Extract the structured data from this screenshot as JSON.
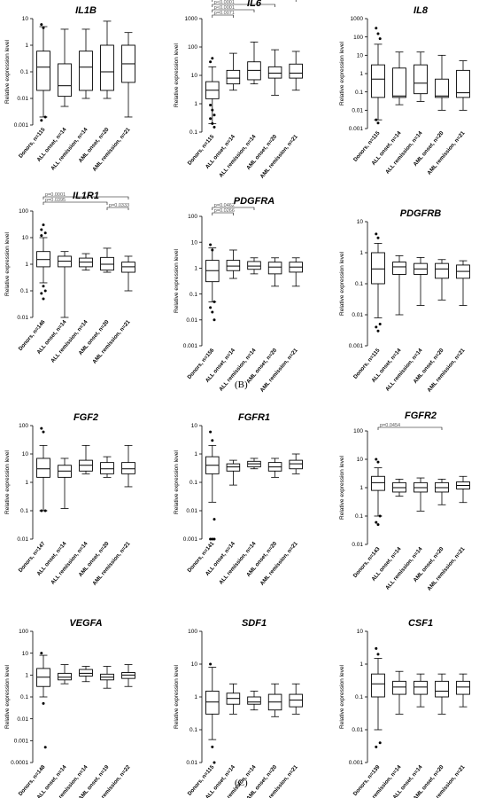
{
  "section_labels": [
    "(B)",
    "(C)"
  ],
  "chart_data": [
    {
      "type": "box",
      "title": "IL1B",
      "ylabel": "Relative expression level",
      "yscale": "log",
      "ylim": [
        0.001,
        10
      ],
      "yticks": [
        "0.001",
        "0.01",
        "0.1",
        "1",
        "10"
      ],
      "categories": [
        "Donors, n=115",
        "ALL onset, n=14",
        "ALL remission, n=14",
        "AML onset, n=20",
        "AML remission, n=21"
      ],
      "boxes": [
        {
          "min": 0.002,
          "q1": 0.02,
          "median": 0.15,
          "q3": 0.6,
          "max": 5,
          "outliers": [
            6,
            4.5,
            0.002,
            0.0015
          ]
        },
        {
          "min": 0.005,
          "q1": 0.012,
          "median": 0.03,
          "q3": 0.2,
          "max": 4
        },
        {
          "min": 0.01,
          "q1": 0.02,
          "median": 0.15,
          "q3": 0.6,
          "max": 4
        },
        {
          "min": 0.01,
          "q1": 0.02,
          "median": 0.1,
          "q3": 1,
          "max": 8
        },
        {
          "min": 0.002,
          "q1": 0.04,
          "median": 0.2,
          "q3": 1,
          "max": 3
        }
      ],
      "comparisons": []
    },
    {
      "type": "box",
      "title": "IL6",
      "ylabel": "Relative expression level",
      "yscale": "log",
      "ylim": [
        0.1,
        1000
      ],
      "yticks": [
        "0.1",
        "1",
        "10",
        "100",
        "1000"
      ],
      "categories": [
        "Donors, n=115",
        "ALL onset, n=14",
        "ALL remission, n=14",
        "AML onset, n=20",
        "AML remission, n=21"
      ],
      "boxes": [
        {
          "min": 0.2,
          "q1": 1.5,
          "median": 3,
          "q3": 6,
          "max": 20,
          "outliers": [
            0.9,
            0.6,
            0.4,
            0.3,
            0.2,
            0.15,
            30,
            40
          ]
        },
        {
          "min": 3,
          "q1": 5,
          "median": 8,
          "q3": 15,
          "max": 60
        },
        {
          "min": 5,
          "q1": 7,
          "median": 15,
          "q3": 30,
          "max": 150
        },
        {
          "min": 2,
          "q1": 8,
          "median": 12,
          "q3": 20,
          "max": 80
        },
        {
          "min": 3,
          "q1": 8,
          "median": 12,
          "q3": 25,
          "max": 70
        }
      ],
      "comparisons": [
        {
          "from": 0,
          "to": 4,
          "label": "p<0.0001"
        },
        {
          "from": 0,
          "to": 3,
          "label": "p<0.0001"
        },
        {
          "from": 0,
          "to": 2,
          "label": "p<0.0001"
        },
        {
          "from": 0,
          "to": 1,
          "label": "p=0.0071"
        }
      ]
    },
    {
      "type": "box",
      "title": "IL8",
      "ylabel": "Relative expression level",
      "yscale": "log",
      "ylim": [
        0.001,
        1000
      ],
      "yticks": [
        "0.001",
        "0.01",
        "0.1",
        "1",
        "10",
        "100",
        "1000"
      ],
      "categories": [
        "Donors, n=115",
        "ALL onset, n=14",
        "ALL remission, n=14",
        "AML onset, n=20",
        "AML remission, n=21"
      ],
      "boxes": [
        {
          "min": 0.003,
          "q1": 0.05,
          "median": 0.5,
          "q3": 3,
          "max": 40,
          "outliers": [
            300,
            150,
            80,
            0.003,
            0.002
          ]
        },
        {
          "min": 0.02,
          "q1": 0.05,
          "median": 0.06,
          "q3": 2,
          "max": 15
        },
        {
          "min": 0.03,
          "q1": 0.08,
          "median": 0.3,
          "q3": 3,
          "max": 15
        },
        {
          "min": 0.01,
          "q1": 0.05,
          "median": 0.06,
          "q3": 0.5,
          "max": 10
        },
        {
          "min": 0.01,
          "q1": 0.05,
          "median": 0.09,
          "q3": 1.5,
          "max": 5
        }
      ],
      "comparisons": []
    },
    {
      "type": "box",
      "title": "IL1R1",
      "ylabel": "Relative expression level",
      "yscale": "log",
      "ylim": [
        0.01,
        100
      ],
      "yticks": [
        "0.01",
        "0.1",
        "1",
        "10",
        "100"
      ],
      "categories": [
        "Donors, n=146",
        "ALL onset, n=14",
        "ALL remission, n=14",
        "AML onset, n=20",
        "AML remission, n=21"
      ],
      "boxes": [
        {
          "min": 0.2,
          "q1": 0.8,
          "median": 1.5,
          "q3": 3,
          "max": 10,
          "outliers": [
            20,
            30,
            15,
            12,
            0.15,
            0.1,
            0.08,
            0.05
          ]
        },
        {
          "min": 0.01,
          "q1": 0.8,
          "median": 1.3,
          "q3": 2,
          "max": 3
        },
        {
          "min": 0.6,
          "q1": 0.8,
          "median": 1.2,
          "q3": 1.7,
          "max": 2.5
        },
        {
          "min": 0.5,
          "q1": 0.6,
          "median": 1,
          "q3": 1.8,
          "max": 4
        },
        {
          "min": 0.1,
          "q1": 0.5,
          "median": 0.8,
          "q3": 1.2,
          "max": 2
        }
      ],
      "comparisons": [
        {
          "from": 0,
          "to": 4,
          "label": "p=0.0001"
        },
        {
          "from": 0,
          "to": 3,
          "label": "p=0.0395"
        },
        {
          "from": 3,
          "to": 4,
          "label": "p=0.0333"
        }
      ]
    },
    {
      "type": "box",
      "title": "PDGFRA",
      "ylabel": "Relative expression level",
      "yscale": "log",
      "ylim": [
        0.001,
        100
      ],
      "yticks": [
        "0.001",
        "0.01",
        "0.1",
        "1",
        "10",
        "100"
      ],
      "categories": [
        "Donors, n=156",
        "ALL onset, n=14",
        "ALL remission, n=14",
        "AML onset, n=20",
        "AML remission, n=21"
      ],
      "boxes": [
        {
          "min": 0.05,
          "q1": 0.3,
          "median": 0.8,
          "q3": 2,
          "max": 6,
          "outliers": [
            8,
            5,
            0.05,
            0.03,
            0.02,
            0.01
          ]
        },
        {
          "min": 0.4,
          "q1": 0.8,
          "median": 1.2,
          "q3": 2,
          "max": 5
        },
        {
          "min": 0.6,
          "q1": 0.9,
          "median": 1.2,
          "q3": 1.8,
          "max": 2.5
        },
        {
          "min": 0.2,
          "q1": 0.6,
          "median": 1.1,
          "q3": 1.7,
          "max": 2.5
        },
        {
          "min": 0.2,
          "q1": 0.7,
          "median": 1.1,
          "q3": 1.7,
          "max": 2.5
        }
      ],
      "comparisons": [
        {
          "from": 0,
          "to": 2,
          "label": "p=0.0462"
        },
        {
          "from": 0,
          "to": 1,
          "label": "p=0.0266"
        }
      ]
    },
    {
      "type": "box",
      "title": "PDGFRB",
      "ylabel": "Relative expression level",
      "yscale": "log",
      "ylim": [
        0.001,
        10
      ],
      "yticks": [
        "0.001",
        "0.01",
        "0.1",
        "1",
        "10"
      ],
      "categories": [
        "Donors, n=115",
        "ALL onset, n=14",
        "ALL remission, n=14",
        "AML onset, n=20",
        "AML remission, n=21"
      ],
      "boxes": [
        {
          "min": 0.008,
          "q1": 0.1,
          "median": 0.3,
          "q3": 1,
          "max": 2,
          "outliers": [
            4,
            3,
            0.005,
            0.004,
            0.003
          ]
        },
        {
          "min": 0.01,
          "q1": 0.2,
          "median": 0.35,
          "q3": 0.5,
          "max": 0.8
        },
        {
          "min": 0.02,
          "q1": 0.2,
          "median": 0.3,
          "q3": 0.45,
          "max": 0.7
        },
        {
          "min": 0.03,
          "q1": 0.15,
          "median": 0.3,
          "q3": 0.45,
          "max": 0.6
        },
        {
          "min": 0.02,
          "q1": 0.15,
          "median": 0.25,
          "q3": 0.4,
          "max": 0.55
        }
      ],
      "comparisons": []
    },
    {
      "type": "box",
      "title": "FGF2",
      "ylabel": "Relative expression level",
      "yscale": "log",
      "ylim": [
        0.01,
        100
      ],
      "yticks": [
        "0.01",
        "0.1",
        "1",
        "10",
        "100"
      ],
      "categories": [
        "Donors, n=147",
        "ALL onset, n=14",
        "ALL remission, n=14",
        "AML onset, n=20",
        "AML remission, n=21"
      ],
      "boxes": [
        {
          "min": 0.1,
          "q1": 1.5,
          "median": 3,
          "q3": 7,
          "max": 20,
          "outliers": [
            80,
            60,
            0.1,
            0.1
          ]
        },
        {
          "min": 0.12,
          "q1": 1.5,
          "median": 2.5,
          "q3": 4,
          "max": 7
        },
        {
          "min": 2,
          "q1": 2.5,
          "median": 4,
          "q3": 6,
          "max": 20
        },
        {
          "min": 1.5,
          "q1": 2,
          "median": 3,
          "q3": 5,
          "max": 8
        },
        {
          "min": 0.7,
          "q1": 2,
          "median": 3,
          "q3": 5,
          "max": 20
        }
      ],
      "comparisons": []
    },
    {
      "type": "box",
      "title": "FGFR1",
      "ylabel": "Relative expression level",
      "yscale": "log",
      "ylim": [
        0.001,
        10
      ],
      "yticks": [
        "0.001",
        "0.01",
        "0.1",
        "1",
        "10"
      ],
      "categories": [
        "Donors, n=141",
        "ALL onset, n=14",
        "ALL remission, n=14",
        "AML onset, n=20",
        "AML remission, n=21"
      ],
      "boxes": [
        {
          "min": 0.02,
          "q1": 0.2,
          "median": 0.4,
          "q3": 0.8,
          "max": 2,
          "outliers": [
            6,
            3,
            0.005,
            0.001,
            0.001,
            0.001
          ]
        },
        {
          "min": 0.08,
          "q1": 0.25,
          "median": 0.35,
          "q3": 0.45,
          "max": 0.6
        },
        {
          "min": 0.3,
          "q1": 0.35,
          "median": 0.45,
          "q3": 0.55,
          "max": 0.7
        },
        {
          "min": 0.15,
          "q1": 0.25,
          "median": 0.35,
          "q3": 0.5,
          "max": 0.7
        },
        {
          "min": 0.2,
          "q1": 0.3,
          "median": 0.45,
          "q3": 0.6,
          "max": 1
        }
      ],
      "comparisons": []
    },
    {
      "type": "box",
      "title": "FGFR2",
      "ylabel": "Relative expression level",
      "yscale": "log",
      "ylim": [
        0.01,
        100
      ],
      "yticks": [
        "0.01",
        "0.1",
        "1",
        "10",
        "100"
      ],
      "categories": [
        "Donors, n=143",
        "ALL onset, n=14",
        "ALL remission, n=14",
        "AML onset, n=20",
        "AML remission, n=21"
      ],
      "boxes": [
        {
          "min": 0.1,
          "q1": 0.8,
          "median": 1.5,
          "q3": 2.5,
          "max": 5,
          "outliers": [
            10,
            8,
            0.1,
            0.06,
            0.05
          ]
        },
        {
          "min": 0.5,
          "q1": 0.7,
          "median": 1,
          "q3": 1.5,
          "max": 2
        },
        {
          "min": 0.15,
          "q1": 0.7,
          "median": 1,
          "q3": 1.5,
          "max": 2.2
        },
        {
          "min": 0.25,
          "q1": 0.7,
          "median": 1,
          "q3": 1.5,
          "max": 2
        },
        {
          "min": 0.3,
          "q1": 0.9,
          "median": 1.2,
          "q3": 1.6,
          "max": 2.5
        }
      ],
      "comparisons": [
        {
          "from": 0,
          "to": 3,
          "label": "p=0.0454"
        }
      ]
    },
    {
      "type": "box",
      "title": "VEGFA",
      "ylabel": "Relative expression level",
      "yscale": "log",
      "ylim": [
        0.0001,
        100
      ],
      "yticks": [
        "0.0001",
        "0.001",
        "0.01",
        "0.1",
        "1",
        "10",
        "100"
      ],
      "categories": [
        "Donors, n=148",
        "ALL onset, n=14",
        "ALL remission, n=14",
        "AML onset, n=19",
        "AML remission, n=22"
      ],
      "boxes": [
        {
          "min": 0.1,
          "q1": 0.3,
          "median": 0.8,
          "q3": 2,
          "max": 8,
          "outliers": [
            10,
            0.05,
            0.0005
          ]
        },
        {
          "min": 0.4,
          "q1": 0.6,
          "median": 0.8,
          "q3": 1.2,
          "max": 3
        },
        {
          "min": 0.5,
          "q1": 0.9,
          "median": 1.2,
          "q3": 1.8,
          "max": 2.5
        },
        {
          "min": 0.25,
          "q1": 0.6,
          "median": 0.8,
          "q3": 1.1,
          "max": 2.5
        },
        {
          "min": 0.3,
          "q1": 0.7,
          "median": 1,
          "q3": 1.3,
          "max": 3
        }
      ],
      "comparisons": []
    },
    {
      "type": "box",
      "title": "SDF1",
      "ylabel": "Relative expression level",
      "yscale": "log",
      "ylim": [
        0.01,
        100
      ],
      "yticks": [
        "0.01",
        "0.1",
        "1",
        "10",
        "100"
      ],
      "categories": [
        "Donors, n=115",
        "ALL onset, n=14",
        "ALL remission, n=14",
        "AML onset, n=20",
        "AML remission, n=21"
      ],
      "boxes": [
        {
          "min": 0.05,
          "q1": 0.3,
          "median": 0.7,
          "q3": 1.5,
          "max": 8,
          "outliers": [
            10,
            0.03,
            0.01
          ]
        },
        {
          "min": 0.3,
          "q1": 0.6,
          "median": 0.9,
          "q3": 1.3,
          "max": 2.5
        },
        {
          "min": 0.4,
          "q1": 0.6,
          "median": 0.7,
          "q3": 1,
          "max": 1.5
        },
        {
          "min": 0.25,
          "q1": 0.4,
          "median": 0.7,
          "q3": 1.2,
          "max": 2.5
        },
        {
          "min": 0.3,
          "q1": 0.5,
          "median": 0.8,
          "q3": 1.2,
          "max": 2.5
        }
      ],
      "comparisons": []
    },
    {
      "type": "box",
      "title": "CSF1",
      "ylabel": "Relative expression level",
      "yscale": "log",
      "ylim": [
        0.001,
        10
      ],
      "yticks": [
        "0.001",
        "0.01",
        "0.1",
        "1",
        "10"
      ],
      "categories": [
        "Donors, n=139",
        "ALL remission, n=14",
        "ALL onset, n=14",
        "AML onset, n=20",
        "AML remission, n=21"
      ],
      "boxes": [
        {
          "min": 0.01,
          "q1": 0.1,
          "median": 0.25,
          "q3": 0.5,
          "max": 1.5,
          "outliers": [
            3,
            2,
            0.004,
            0.003
          ]
        },
        {
          "min": 0.03,
          "q1": 0.12,
          "median": 0.2,
          "q3": 0.3,
          "max": 0.6
        },
        {
          "min": 0.05,
          "q1": 0.12,
          "median": 0.2,
          "q3": 0.3,
          "max": 0.5
        },
        {
          "min": 0.03,
          "q1": 0.1,
          "median": 0.15,
          "q3": 0.3,
          "max": 0.5
        },
        {
          "min": 0.05,
          "q1": 0.12,
          "median": 0.2,
          "q3": 0.3,
          "max": 0.5
        }
      ],
      "comparisons": []
    }
  ]
}
